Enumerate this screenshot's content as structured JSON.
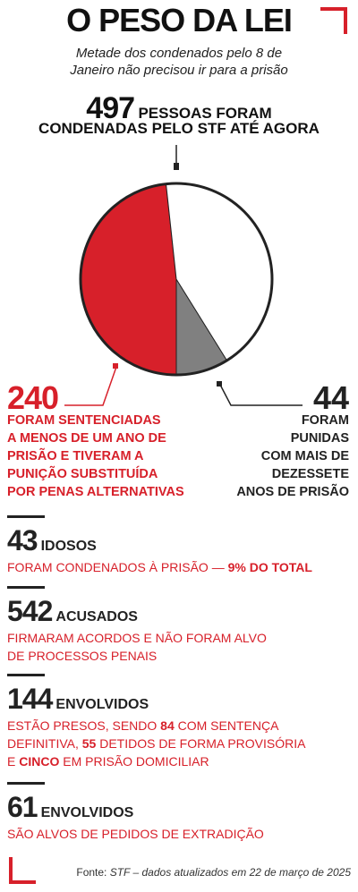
{
  "title": "O PESO DA LEI",
  "subtitle_line1": "Metade dos condenados pelo 8 de",
  "subtitle_line2": "Janeiro não precisou ir para a prisão",
  "total": {
    "number": "497",
    "label_line1": "PESSOAS FORAM",
    "label_line2": "CONDENADAS PELO STF ATÉ AGORA"
  },
  "chart_data": {
    "type": "pie",
    "total": 497,
    "slices": [
      {
        "value": 240,
        "color": "#d7202a"
      },
      {
        "value": 44,
        "color": "#808080"
      },
      {
        "value": 213,
        "color": "#ffffff"
      }
    ]
  },
  "red_callout": {
    "number": "240",
    "lines": [
      "FORAM SENTENCIADAS",
      "A MENOS DE UM ANO DE",
      "PRISÃO E TIVERAM A",
      "PUNIÇÃO SUBSTITUÍDA",
      "POR PENAS ALTERNATIVAS"
    ]
  },
  "gray_callout": {
    "number": "44",
    "lines": [
      "FORAM",
      "PUNIDAS",
      "COM MAIS DE",
      "DEZESSETE",
      "ANOS DE PRISÃO"
    ]
  },
  "stats": [
    {
      "number": "43",
      "word": "IDOSOS",
      "text_parts": [
        [
          "FORAM CONDENADOS À PRISÃO — ",
          false
        ],
        [
          "9% DO TOTAL",
          true
        ]
      ]
    },
    {
      "number": "542",
      "word": "ACUSADOS",
      "text_line1": "FIRMARAM ACORDOS E NÃO FORAM ALVO",
      "text_line2": "DE PROCESSOS PENAIS"
    },
    {
      "number": "144",
      "word": "ENVOLVIDOS",
      "t1": "ESTÃO PRESOS, SENDO ",
      "b1": "84",
      "t2": " COM SENTENÇA",
      "t3": "DEFINITIVA, ",
      "b2": "55",
      "t4": " DETIDOS DE FORMA PROVISÓRIA",
      "t5": "E ",
      "b3": "CINCO",
      "t6": " EM PRISÃO DOMICILIAR"
    },
    {
      "number": "61",
      "word": "ENVOLVIDOS",
      "text_line1": "SÃO ALVOS DE PEDIDOS DE EXTRADIÇÃO"
    }
  ],
  "source": {
    "label": "Fonte: ",
    "text": "STF – dados atualizados em 22 de março de 2025"
  }
}
